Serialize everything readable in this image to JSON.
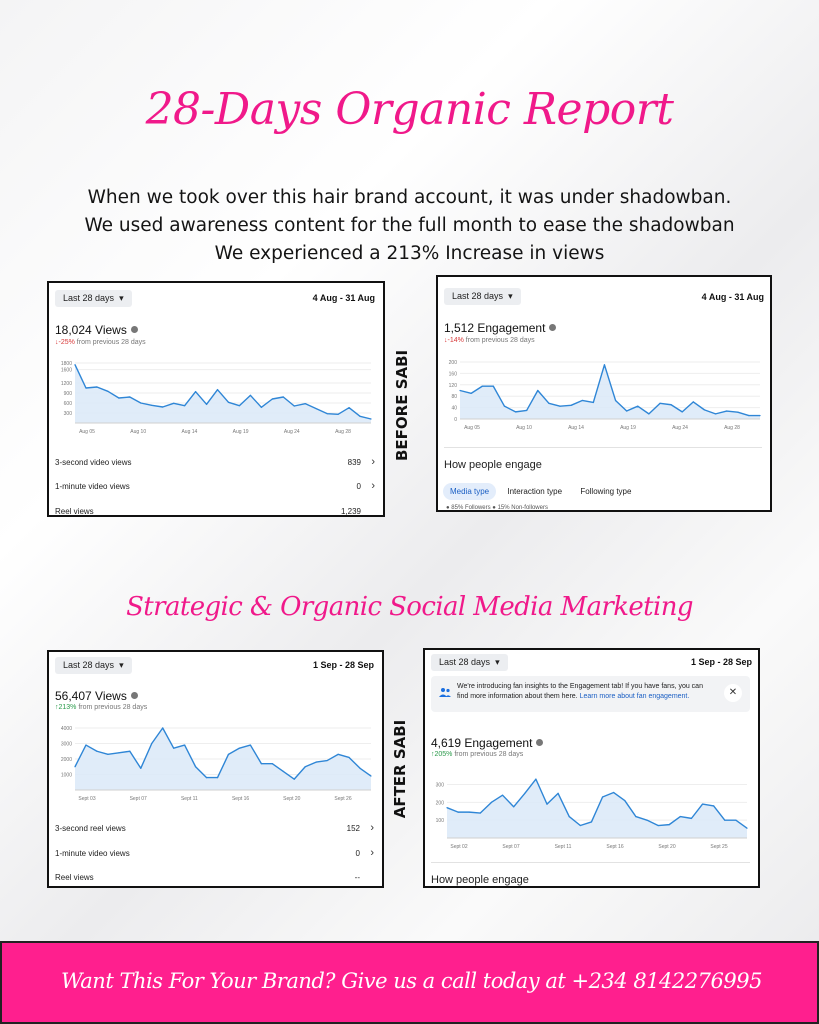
{
  "title": "28-Days Organic Report",
  "intro_lines": [
    "When we took over this hair brand account, it was under shadowban.",
    "We used awareness content for the full month to ease the shadowban",
    "We experienced a 213% Increase in views"
  ],
  "before_label": "BEFORE SABI",
  "after_label": "AFTER SABI",
  "subtitle": "Strategic & Organic Social Media Marketing",
  "footer_text": "Want This For Your Brand? Give us a call today at +234 8142276995",
  "colors": {
    "accent": "#f0198a",
    "footer_bg": "#ff1f8e",
    "line": "#2f86d6",
    "fill": "#dbe9f8"
  },
  "cards": {
    "before_views": {
      "range_button": "Last 28 days",
      "date_range": "4 Aug - 31 Aug",
      "metric": "18,024 Views",
      "change_arrow": "↓",
      "change_pct": "-25%",
      "change_rest": " from previous 28 days",
      "rows": [
        {
          "label": "3-second video views",
          "value": "839"
        },
        {
          "label": "1-minute video views",
          "value": "0"
        },
        {
          "label": "Reel views",
          "value": "1,239"
        }
      ]
    },
    "before_engagement": {
      "range_button": "Last 28 days",
      "date_range": "4 Aug - 31 Aug",
      "metric": "1,512 Engagement",
      "change_arrow": "↓",
      "change_pct": "-14%",
      "change_rest": " from previous 28 days",
      "section": "How people engage",
      "tabs": [
        "Media type",
        "Interaction type",
        "Following type"
      ],
      "legend_fragment": "● 85% Followers   ● 15% Non-followers"
    },
    "after_views": {
      "range_button": "Last 28 days",
      "date_range": "1 Sep - 28 Sep",
      "metric": "56,407 Views",
      "change_arrow": "↑",
      "change_pct": "213%",
      "change_rest": " from previous 28 days",
      "rows": [
        {
          "label": "3-second reel views",
          "value": "152"
        },
        {
          "label": "1-minute video views",
          "value": "0"
        },
        {
          "label": "Reel views",
          "value": "--"
        }
      ]
    },
    "after_engagement": {
      "range_button": "Last 28 days",
      "date_range": "1 Sep - 28 Sep",
      "notice_text": "We're introducing fan insights to the Engagement tab! If you have fans, you can find more information about them here.",
      "notice_link": "Learn more about fan engagement.",
      "metric": "4,619 Engagement",
      "change_arrow": "↑",
      "change_pct": "205%",
      "change_rest": " from previous 28 days",
      "section": "How people engage"
    }
  },
  "chart_data": [
    {
      "type": "area",
      "id": "before_views",
      "x_ticks": [
        "Aug 05",
        "Aug 10",
        "Aug 14",
        "Aug 19",
        "Aug 24",
        "Aug 28"
      ],
      "y_ticks": [
        1800,
        1600,
        1200,
        900,
        600,
        300
      ],
      "ylim": [
        0,
        1800
      ],
      "values": [
        1750,
        1050,
        1080,
        950,
        750,
        780,
        600,
        530,
        480,
        590,
        520,
        940,
        560,
        1000,
        620,
        520,
        830,
        470,
        720,
        780,
        510,
        580,
        430,
        280,
        260,
        460,
        200,
        120
      ]
    },
    {
      "type": "area",
      "id": "before_engagement",
      "x_ticks": [
        "Aug 05",
        "Aug 10",
        "Aug 14",
        "Aug 19",
        "Aug 24",
        "Aug 28"
      ],
      "y_ticks": [
        200,
        160,
        120,
        80,
        40,
        0
      ],
      "ylim": [
        0,
        200
      ],
      "values": [
        100,
        90,
        115,
        115,
        45,
        25,
        30,
        100,
        55,
        45,
        48,
        65,
        58,
        190,
        65,
        28,
        45,
        18,
        55,
        50,
        25,
        60,
        32,
        18,
        28,
        24,
        12,
        12
      ]
    },
    {
      "type": "area",
      "id": "after_views",
      "x_ticks": [
        "Sept 03",
        "Sept 07",
        "Sept 11",
        "Sept 16",
        "Sept 20",
        "Sept 26"
      ],
      "y_ticks": [
        4000,
        3000,
        2000,
        1000
      ],
      "ylim": [
        0,
        4000
      ],
      "values": [
        1500,
        2900,
        2500,
        2300,
        2400,
        2500,
        1400,
        3000,
        4000,
        2700,
        2900,
        1500,
        800,
        800,
        2300,
        2700,
        2900,
        1700,
        1700,
        1200,
        700,
        1500,
        1800,
        1900,
        2300,
        2100,
        1400,
        900
      ]
    },
    {
      "type": "area",
      "id": "after_engagement",
      "x_ticks": [
        "Sept 02",
        "Sept 07",
        "Sept 11",
        "Sept 16",
        "Sept 20",
        "Sept 25"
      ],
      "y_ticks": [
        300,
        200,
        100
      ],
      "ylim": [
        0,
        370
      ],
      "values": [
        170,
        145,
        145,
        140,
        200,
        240,
        175,
        250,
        330,
        190,
        250,
        120,
        70,
        90,
        230,
        255,
        210,
        120,
        100,
        70,
        75,
        120,
        110,
        190,
        180,
        100,
        100,
        55
      ]
    }
  ]
}
